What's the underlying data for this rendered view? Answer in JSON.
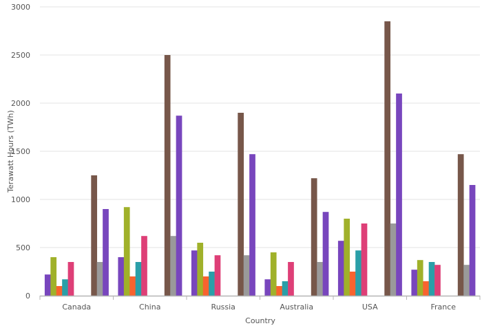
{
  "chart_data": {
    "type": "bar",
    "title": "",
    "xlabel": "Country",
    "ylabel": "Terawatt Hours (TWh)",
    "ylim": [
      0,
      3000
    ],
    "yticks": [
      0,
      500,
      1000,
      1500,
      2000,
      2500,
      3000
    ],
    "grid": true,
    "legend": "none",
    "categories": [
      "Canada",
      "China",
      "Russia",
      "Australia",
      "USA",
      "France"
    ],
    "series": [
      {
        "color": "#7846bd",
        "values": [
          220,
          400,
          470,
          170,
          570,
          270
        ]
      },
      {
        "color": "#a0b12a",
        "values": [
          400,
          920,
          550,
          450,
          800,
          370
        ]
      },
      {
        "color": "#f8632f",
        "values": [
          100,
          200,
          200,
          100,
          250,
          150
        ]
      },
      {
        "color": "#2a9fa8",
        "values": [
          170,
          350,
          250,
          150,
          470,
          350
        ]
      },
      {
        "color": "#de3f77",
        "values": [
          350,
          620,
          420,
          350,
          750,
          320
        ]
      },
      {
        "color": "#c0c0c0",
        "values": [
          0,
          0,
          0,
          0,
          0,
          0
        ]
      },
      {
        "color": "#c0c0c0",
        "values": [
          0,
          0,
          0,
          0,
          0,
          0
        ]
      },
      {
        "color": "#c0c0c0",
        "values": [
          0,
          0,
          0,
          0,
          0,
          0
        ]
      },
      {
        "color": "#77574a",
        "values": [
          1250,
          2500,
          1900,
          1220,
          2850,
          1470
        ]
      },
      {
        "color": "#9a9a9a",
        "values": [
          350,
          620,
          420,
          350,
          750,
          320
        ]
      },
      {
        "color": "#7846bd",
        "values": [
          900,
          1870,
          1470,
          870,
          2100,
          1150
        ]
      }
    ]
  }
}
